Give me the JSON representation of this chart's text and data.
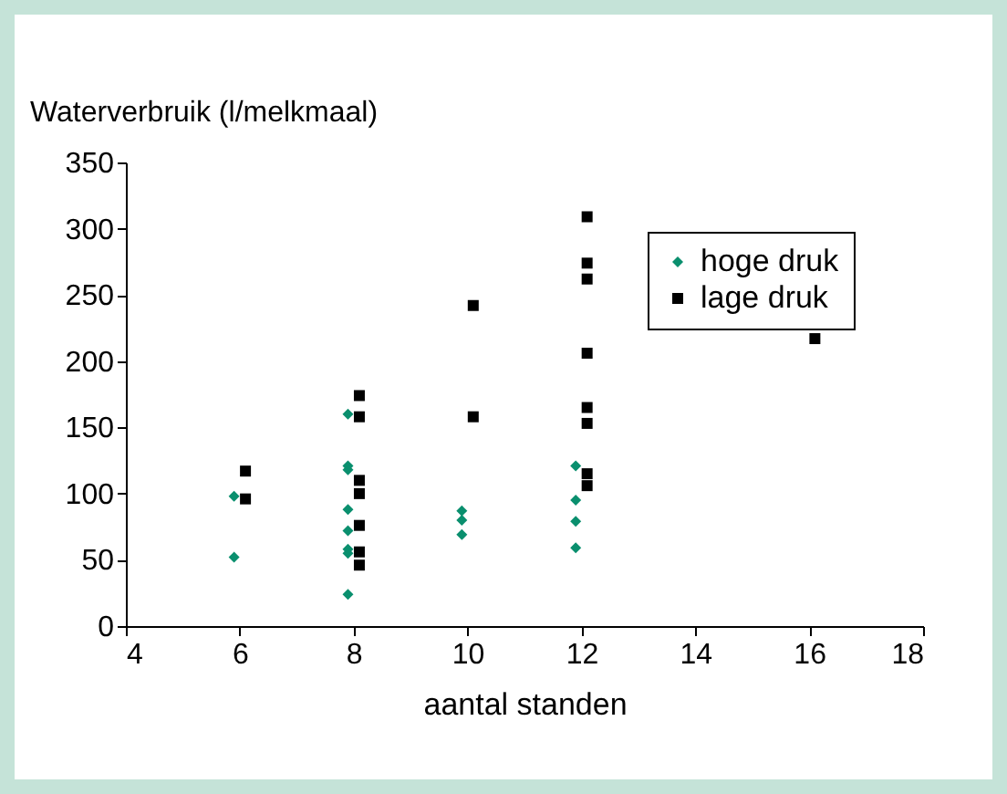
{
  "chart_data": {
    "type": "scatter",
    "xlabel": "aantal standen",
    "ylabel": "Waterverbruik (l/melkmaal)",
    "xlim": [
      4,
      18
    ],
    "xticks": [
      4,
      6,
      8,
      10,
      12,
      14,
      16,
      18
    ],
    "ylim": [
      0,
      350
    ],
    "yticks": [
      0,
      50,
      100,
      150,
      200,
      250,
      300,
      350
    ],
    "grid": false,
    "legend": "top right",
    "series": [
      {
        "name": "hoge druk",
        "color": "#0a8f6e",
        "marker": "diamond",
        "x": [
          5.9,
          5.9,
          7.9,
          7.9,
          7.9,
          7.9,
          7.9,
          7.9,
          7.9,
          7.9,
          9.9,
          9.9,
          9.9,
          11.9,
          11.9,
          11.9,
          11.9
        ],
        "values": [
          98,
          52,
          160,
          121,
          118,
          88,
          72,
          58,
          55,
          24,
          87,
          80,
          69,
          121,
          95,
          79,
          59
        ]
      },
      {
        "name": "lage druk",
        "color": "#000000",
        "marker": "square",
        "x": [
          6.1,
          6.1,
          8.1,
          8.1,
          8.1,
          8.1,
          8.1,
          8.1,
          8.1,
          10.1,
          10.1,
          12.1,
          12.1,
          12.1,
          12.1,
          12.1,
          12.1,
          12.1,
          12.1,
          16.1
        ],
        "values": [
          117,
          96,
          174,
          158,
          110,
          100,
          76,
          56,
          46,
          242,
          158,
          309,
          274,
          262,
          206,
          165,
          153,
          115,
          106,
          217
        ]
      }
    ]
  }
}
